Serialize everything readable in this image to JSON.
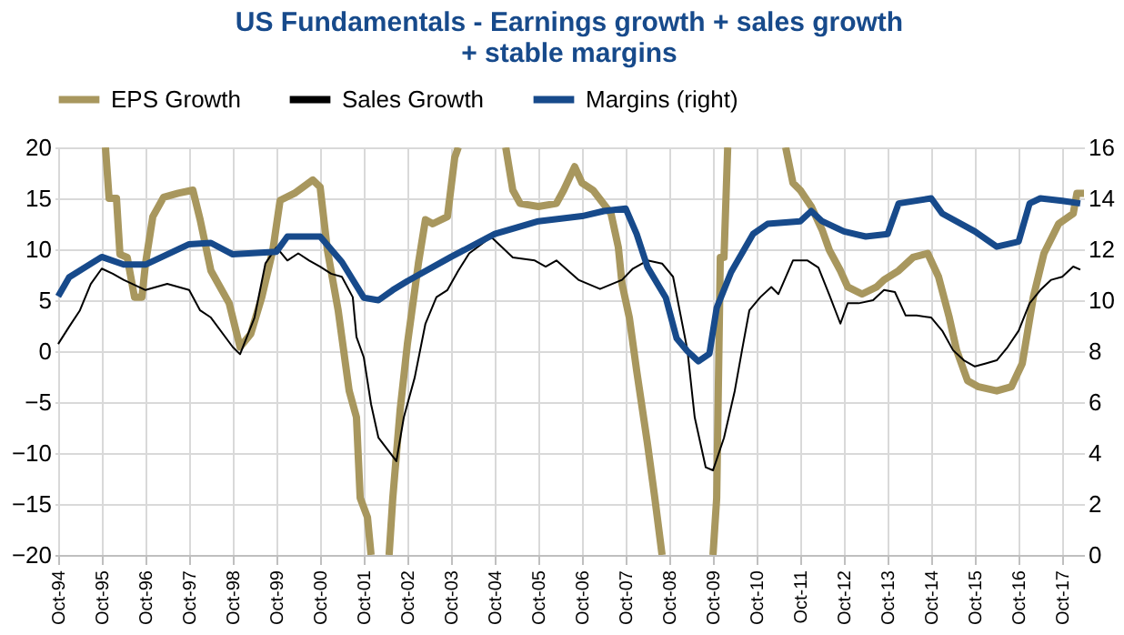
{
  "chart_data": {
    "type": "line",
    "title": "US Fundamentals - Earnings growth + sales growth + stable margins",
    "xlim": [
      "1994-09",
      "2018-04"
    ],
    "xticks": [
      {
        "value": "1994-10",
        "label": "Oct-94"
      },
      {
        "value": "1995-10",
        "label": "Oct-95"
      },
      {
        "value": "1996-10",
        "label": "Oct-96"
      },
      {
        "value": "1997-10",
        "label": "Oct-97"
      },
      {
        "value": "1998-10",
        "label": "Oct-98"
      },
      {
        "value": "1999-10",
        "label": "Oct-99"
      },
      {
        "value": "2000-10",
        "label": "Oct-00"
      },
      {
        "value": "2001-10",
        "label": "Oct-01"
      },
      {
        "value": "2002-10",
        "label": "Oct-02"
      },
      {
        "value": "2003-10",
        "label": "Oct-03"
      },
      {
        "value": "2004-10",
        "label": "Oct-04"
      },
      {
        "value": "2005-10",
        "label": "Oct-05"
      },
      {
        "value": "2006-10",
        "label": "Oct-06"
      },
      {
        "value": "2007-10",
        "label": "Oct-07"
      },
      {
        "value": "2008-10",
        "label": "Oct-08"
      },
      {
        "value": "2009-10",
        "label": "Oct-09"
      },
      {
        "value": "2010-10",
        "label": "Oct-10"
      },
      {
        "value": "2011-10",
        "label": "Oct-11"
      },
      {
        "value": "2012-10",
        "label": "Oct-12"
      },
      {
        "value": "2013-10",
        "label": "Oct-13"
      },
      {
        "value": "2014-10",
        "label": "Oct-14"
      },
      {
        "value": "2015-10",
        "label": "Oct-15"
      },
      {
        "value": "2016-10",
        "label": "Oct-16"
      },
      {
        "value": "2017-10",
        "label": "Oct-17"
      }
    ],
    "ylim": [
      -20,
      20
    ],
    "yticks": [
      -20,
      -15,
      -10,
      -5,
      0,
      5,
      10,
      15,
      20
    ],
    "y2lim": [
      0,
      16
    ],
    "y2ticks": [
      0,
      2,
      4,
      6,
      8,
      10,
      12,
      14,
      16
    ],
    "grid": true,
    "legend": "top",
    "series": [
      {
        "name": "EPS Growth",
        "color": "#a8975e",
        "x": [
          "1995-11",
          "1995-12",
          "1996-02",
          "1996-03",
          "1996-05",
          "1996-07",
          "1996-09",
          "1996-10",
          "1996-12",
          "1997-03",
          "1997-07",
          "1997-11",
          "1998-01",
          "1998-04",
          "1998-09",
          "1998-12",
          "1999-03",
          "1999-06",
          "1999-09",
          "1999-11",
          "2000-03",
          "2000-08",
          "2000-10",
          "2000-12",
          "2001-03",
          "2001-06",
          "2001-08",
          "2001-09",
          "2001-11",
          "2001-12",
          "2002-02",
          "2002-05",
          "2002-06",
          "2002-08",
          "2002-10",
          "2003-01",
          "2003-03",
          "2003-05",
          "2003-09",
          "2003-11",
          "2003-12",
          "2004-06",
          "2005-01",
          "2005-03",
          "2005-05",
          "2005-10",
          "2006-03",
          "2006-05",
          "2006-08",
          "2006-10",
          "2007-01",
          "2007-06",
          "2007-08",
          "2007-09",
          "2007-11",
          "2008-01",
          "2008-04",
          "2008-06",
          "2008-08",
          "2009-01",
          "2009-10",
          "2009-11",
          "2009-12",
          "2010-01",
          "2010-02",
          "2010-11",
          "2011-06",
          "2011-08",
          "2011-10",
          "2012-01",
          "2012-04",
          "2012-06",
          "2012-09",
          "2012-11",
          "2013-03",
          "2013-07",
          "2013-09",
          "2014-01",
          "2014-05",
          "2014-09",
          "2014-12",
          "2015-03",
          "2015-05",
          "2015-08",
          "2015-11",
          "2016-04",
          "2016-08",
          "2016-11",
          "2017-02",
          "2017-05",
          "2017-09",
          "2018-01",
          "2018-02",
          "2018-04"
        ],
        "values": [
          20,
          15.0,
          15.0,
          9.5,
          9.2,
          5.3,
          5.3,
          8.6,
          13.2,
          15.1,
          15.5,
          15.8,
          12.9,
          7.9,
          4.7,
          0.4,
          1.7,
          5.3,
          9.9,
          14.8,
          15.5,
          16.8,
          16.1,
          9.9,
          4.0,
          -3.9,
          -6.5,
          -14.4,
          -16.3,
          -20,
          null,
          -20,
          -14.4,
          -5.8,
          0.7,
          8.6,
          12.9,
          12.5,
          13.2,
          19.0,
          20,
          null,
          20,
          15.8,
          14.5,
          14.2,
          14.5,
          15.8,
          18.1,
          16.5,
          15.8,
          13.5,
          10.2,
          6.6,
          3.3,
          -1.9,
          -9.1,
          -14.4,
          -20,
          null,
          -20,
          -14.4,
          9.2,
          9.2,
          20,
          null,
          20,
          16.5,
          15.8,
          14.2,
          11.9,
          9.9,
          7.9,
          6.3,
          5.6,
          6.3,
          7.0,
          7.9,
          9.2,
          9.6,
          7.3,
          3.3,
          0.1,
          -2.9,
          -3.5,
          -3.9,
          -3.5,
          -1.2,
          5.3,
          9.6,
          12.5,
          13.5,
          15.5,
          15.5
        ]
      },
      {
        "name": "Sales Growth",
        "color": "#000000",
        "x": [
          "1994-10",
          "1995-01",
          "1995-04",
          "1995-07",
          "1995-10",
          "1996-01",
          "1996-04",
          "1996-10",
          "1997-04",
          "1997-10",
          "1998-01",
          "1998-04",
          "1998-10",
          "1998-12",
          "1999-04",
          "1999-07",
          "1999-10",
          "2000-01",
          "2000-04",
          "2000-07",
          "2000-10",
          "2001-01",
          "2001-04",
          "2001-07",
          "2001-08",
          "2001-10",
          "2001-12",
          "2002-02",
          "2002-07",
          "2002-09",
          "2002-12",
          "2003-03",
          "2003-06",
          "2003-09",
          "2003-12",
          "2004-03",
          "2004-09",
          "2004-12",
          "2005-03",
          "2005-09",
          "2005-12",
          "2006-03",
          "2006-09",
          "2007-03",
          "2007-09",
          "2007-12",
          "2008-04",
          "2008-08",
          "2008-11",
          "2009-03",
          "2009-05",
          "2009-08",
          "2009-10",
          "2010-01",
          "2010-04",
          "2010-06",
          "2010-08",
          "2010-11",
          "2011-02",
          "2011-04",
          "2011-08",
          "2011-12",
          "2012-03",
          "2012-06",
          "2012-09",
          "2012-11",
          "2013-02",
          "2013-06",
          "2013-09",
          "2013-12",
          "2014-03",
          "2014-06",
          "2014-10",
          "2015-01",
          "2015-04",
          "2015-07",
          "2015-10",
          "2016-01",
          "2016-04",
          "2016-07",
          "2016-10",
          "2017-01",
          "2017-04",
          "2017-07",
          "2017-10",
          "2018-01",
          "2018-03"
        ],
        "values": [
          0.7,
          2.4,
          4.0,
          6.6,
          8.1,
          7.6,
          7.0,
          6.0,
          6.6,
          6.0,
          4.0,
          3.3,
          0.4,
          -0.3,
          3.3,
          8.6,
          10.2,
          8.9,
          9.6,
          8.9,
          8.3,
          7.6,
          7.3,
          5.3,
          1.4,
          -0.6,
          -5.2,
          -8.5,
          -10.8,
          -6.5,
          -2.6,
          2.7,
          5.3,
          6.0,
          7.9,
          9.6,
          11.2,
          10.2,
          9.2,
          8.9,
          8.3,
          8.9,
          7.0,
          6.1,
          7.0,
          8.1,
          8.9,
          8.6,
          7.3,
          0.1,
          -6.5,
          -11.4,
          -11.7,
          -8.5,
          -3.9,
          0.1,
          4.0,
          5.3,
          6.3,
          5.6,
          8.9,
          8.9,
          8.2,
          5.5,
          2.7,
          4.7,
          4.7,
          5.0,
          6.0,
          5.8,
          3.5,
          3.5,
          3.3,
          2.0,
          0.1,
          -0.9,
          -1.5,
          -1.2,
          -0.9,
          0.4,
          2.0,
          4.7,
          6.0,
          7.0,
          7.3,
          8.3,
          8.0
        ]
      },
      {
        "name": "Margins (right)",
        "color": "#174a8b",
        "axis": "y2",
        "x": [
          "1994-10",
          "1995-01",
          "1995-10",
          "1996-04",
          "1996-10",
          "1997-10",
          "1998-04",
          "1998-10",
          "1999-10",
          "2000-01",
          "2000-10",
          "2001-04",
          "2001-10",
          "2002-02",
          "2002-06",
          "2002-10",
          "2003-10",
          "2004-10",
          "2005-10",
          "2006-10",
          "2007-04",
          "2007-10",
          "2008-01",
          "2008-04",
          "2008-09",
          "2008-12",
          "2009-03",
          "2009-06",
          "2009-09",
          "2009-11",
          "2010-03",
          "2010-09",
          "2011-01",
          "2011-10",
          "2012-01",
          "2012-04",
          "2012-10",
          "2013-04",
          "2013-10",
          "2014-01",
          "2014-10",
          "2015-01",
          "2015-10",
          "2016-04",
          "2016-10",
          "2017-01",
          "2017-04",
          "2017-10",
          "2018-03"
        ],
        "values": [
          10.15,
          10.9,
          11.7,
          11.4,
          11.4,
          12.2,
          12.25,
          11.8,
          11.9,
          12.5,
          12.5,
          11.5,
          10.1,
          10.0,
          10.4,
          10.75,
          11.7,
          12.6,
          13.1,
          13.3,
          13.5,
          13.6,
          12.6,
          11.3,
          10.1,
          8.5,
          8.0,
          7.6,
          7.9,
          9.7,
          11.1,
          12.6,
          13.0,
          13.1,
          13.5,
          13.1,
          12.7,
          12.5,
          12.6,
          13.8,
          14.0,
          13.4,
          12.7,
          12.1,
          12.3,
          13.8,
          14.0,
          13.9,
          13.8
        ]
      }
    ]
  }
}
